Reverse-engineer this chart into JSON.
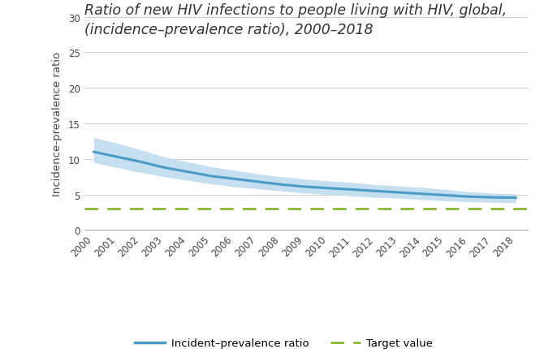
{
  "title_line1": "Ratio of new HIV infections to people living with HIV, global,",
  "title_line2": "(incidence–prevalence ratio), 2000–2018",
  "years": [
    2000,
    2001,
    2002,
    2003,
    2004,
    2005,
    2006,
    2007,
    2008,
    2009,
    2010,
    2011,
    2012,
    2013,
    2014,
    2015,
    2016,
    2017,
    2018
  ],
  "main_values": [
    11.0,
    10.3,
    9.6,
    8.8,
    8.2,
    7.6,
    7.2,
    6.8,
    6.4,
    6.1,
    5.9,
    5.7,
    5.5,
    5.3,
    5.1,
    4.9,
    4.7,
    4.6,
    4.55
  ],
  "upper_ci": [
    13.0,
    12.2,
    11.3,
    10.3,
    9.6,
    8.9,
    8.4,
    7.9,
    7.5,
    7.2,
    6.9,
    6.7,
    6.4,
    6.2,
    6.0,
    5.7,
    5.4,
    5.2,
    5.1
  ],
  "lower_ci": [
    9.5,
    8.8,
    8.1,
    7.5,
    7.0,
    6.5,
    6.1,
    5.8,
    5.5,
    5.2,
    5.0,
    4.8,
    4.6,
    4.5,
    4.3,
    4.1,
    4.0,
    3.9,
    3.85
  ],
  "target_value": 3.0,
  "line_color": "#4a9cc7",
  "ci_color": "#c5dff0",
  "target_color": "#8ab832",
  "ylabel": "Incidence-prevalence ratio",
  "ylim": [
    0,
    30
  ],
  "yticks": [
    0,
    5,
    10,
    15,
    20,
    25,
    30
  ],
  "background_color": "#ffffff",
  "legend_label_main": "Incident–prevalence ratio",
  "legend_label_target": "Target value",
  "title_fontsize": 12.5,
  "tick_fontsize": 8.5,
  "ylabel_fontsize": 9.5,
  "legend_fontsize": 9.5
}
